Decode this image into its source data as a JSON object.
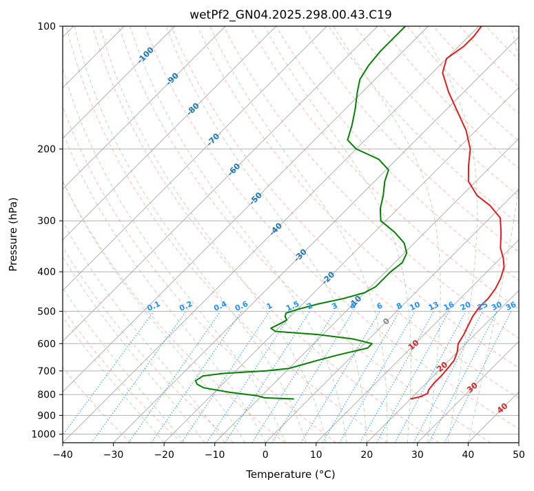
{
  "chart_data": {
    "type": "line",
    "title": "wetPf2_GN04.2025.298.00.43.C19",
    "xlabel": "Temperature (°C)",
    "ylabel": "Pressure (hPa)",
    "xlim": [
      -40,
      50
    ],
    "ylim_hpa": [
      1050,
      100
    ],
    "y_scale": "log",
    "grid": true,
    "x_ticks": [
      -40,
      -30,
      -20,
      -10,
      0,
      10,
      20,
      30,
      40,
      50
    ],
    "x_tick_labels": [
      "−40",
      "−30",
      "−20",
      "−10",
      "0",
      "10",
      "20",
      "30",
      "40",
      "50"
    ],
    "y_ticks": [
      100,
      200,
      300,
      400,
      500,
      600,
      700,
      800,
      900,
      1000
    ],
    "y_tick_labels": [
      "100",
      "200",
      "300",
      "400",
      "500",
      "600",
      "700",
      "800",
      "900",
      "1000"
    ],
    "skew_degrees": 45,
    "colors": {
      "temperature": "#e31a1c",
      "dewpoint": "#008000",
      "isotherm_label": "#1f77b4",
      "mixing_ratio_label": "#1e90ff",
      "dry_adiabat": "#fa8072",
      "moist_adiabat": "#90c890",
      "mixing_ratio_line": "#1e90ff",
      "isotherm": "#aaaaaa",
      "dry_adiabat_label": "#d62728"
    },
    "series": [
      {
        "name": "",
        "role": "temperature",
        "points": [
          {
            "p": 820,
            "t": 20.0
          },
          {
            "p": 810,
            "t": 21.5
          },
          {
            "p": 795,
            "t": 22.3
          },
          {
            "p": 780,
            "t": 21.8
          },
          {
            "p": 750,
            "t": 21.5
          },
          {
            "p": 720,
            "t": 21.5
          },
          {
            "p": 690,
            "t": 21.3
          },
          {
            "p": 660,
            "t": 21.0
          },
          {
            "p": 630,
            "t": 20.0
          },
          {
            "p": 600,
            "t": 18.5
          },
          {
            "p": 570,
            "t": 17.8
          },
          {
            "p": 545,
            "t": 17.0
          },
          {
            "p": 515,
            "t": 16.0
          },
          {
            "p": 490,
            "t": 15.5
          },
          {
            "p": 465,
            "t": 15.5
          },
          {
            "p": 440,
            "t": 15.0
          },
          {
            "p": 415,
            "t": 14.0
          },
          {
            "p": 390,
            "t": 12.5
          },
          {
            "p": 370,
            "t": 10.5
          },
          {
            "p": 350,
            "t": 8.0
          },
          {
            "p": 320,
            "t": 5.0
          },
          {
            "p": 295,
            "t": 2.0
          },
          {
            "p": 275,
            "t": -2.5
          },
          {
            "p": 260,
            "t": -7.0
          },
          {
            "p": 240,
            "t": -11.5
          },
          {
            "p": 220,
            "t": -14.5
          },
          {
            "p": 200,
            "t": -17.5
          },
          {
            "p": 180,
            "t": -22.0
          },
          {
            "p": 160,
            "t": -28.0
          },
          {
            "p": 145,
            "t": -33.0
          },
          {
            "p": 130,
            "t": -38.0
          },
          {
            "p": 120,
            "t": -40.0
          },
          {
            "p": 112,
            "t": -39.0
          },
          {
            "p": 106,
            "t": -39.0
          },
          {
            "p": 100,
            "t": -39.5
          }
        ]
      },
      {
        "name": "",
        "role": "dewpoint",
        "points": [
          {
            "p": 820,
            "t": -3.0
          },
          {
            "p": 815,
            "t": -9.0
          },
          {
            "p": 805,
            "t": -11.0
          },
          {
            "p": 790,
            "t": -17.0
          },
          {
            "p": 770,
            "t": -23.0
          },
          {
            "p": 755,
            "t": -25.0
          },
          {
            "p": 740,
            "t": -26.0
          },
          {
            "p": 720,
            "t": -25.5
          },
          {
            "p": 710,
            "t": -22.0
          },
          {
            "p": 700,
            "t": -14.0
          },
          {
            "p": 690,
            "t": -10.0
          },
          {
            "p": 675,
            "t": -8.0
          },
          {
            "p": 660,
            "t": -6.0
          },
          {
            "p": 640,
            "t": -3.0
          },
          {
            "p": 615,
            "t": 1.5
          },
          {
            "p": 600,
            "t": 1.5
          },
          {
            "p": 585,
            "t": -3.0
          },
          {
            "p": 570,
            "t": -11.0
          },
          {
            "p": 560,
            "t": -20.0
          },
          {
            "p": 550,
            "t": -21.5
          },
          {
            "p": 535,
            "t": -20.5
          },
          {
            "p": 525,
            "t": -20.0
          },
          {
            "p": 515,
            "t": -21.0
          },
          {
            "p": 505,
            "t": -21.5
          },
          {
            "p": 495,
            "t": -20.0
          },
          {
            "p": 480,
            "t": -17.0
          },
          {
            "p": 465,
            "t": -13.0
          },
          {
            "p": 450,
            "t": -10.0
          },
          {
            "p": 435,
            "t": -9.0
          },
          {
            "p": 420,
            "t": -9.0
          },
          {
            "p": 400,
            "t": -9.0
          },
          {
            "p": 380,
            "t": -8.5
          },
          {
            "p": 360,
            "t": -9.5
          },
          {
            "p": 340,
            "t": -12.0
          },
          {
            "p": 320,
            "t": -16.0
          },
          {
            "p": 300,
            "t": -21.0
          },
          {
            "p": 280,
            "t": -23.5
          },
          {
            "p": 260,
            "t": -25.5
          },
          {
            "p": 240,
            "t": -28.0
          },
          {
            "p": 225,
            "t": -29.5
          },
          {
            "p": 212,
            "t": -33.5
          },
          {
            "p": 200,
            "t": -40.0
          },
          {
            "p": 190,
            "t": -43.5
          },
          {
            "p": 175,
            "t": -45.5
          },
          {
            "p": 160,
            "t": -48.0
          },
          {
            "p": 145,
            "t": -51.0
          },
          {
            "p": 135,
            "t": -53.0
          },
          {
            "p": 125,
            "t": -54.0
          },
          {
            "p": 115,
            "t": -54.5
          },
          {
            "p": 100,
            "t": -54.5
          }
        ]
      }
    ],
    "isotherm_labels": [
      {
        "temp": -100,
        "text": "-100",
        "p": 118
      },
      {
        "temp": -90,
        "text": "-90",
        "p": 135
      },
      {
        "temp": -80,
        "text": "-80",
        "p": 160
      },
      {
        "temp": -70,
        "text": "-70",
        "p": 190
      },
      {
        "temp": -60,
        "text": "-60",
        "p": 225
      },
      {
        "temp": -50,
        "text": "-50",
        "p": 265
      },
      {
        "temp": -40,
        "text": "-40",
        "p": 315
      },
      {
        "temp": -30,
        "text": "-30",
        "p": 365
      },
      {
        "temp": -20,
        "text": "-20",
        "p": 415
      },
      {
        "temp": -10,
        "text": "-10",
        "p": 475
      }
    ],
    "isotherm_zero_label": {
      "temp": 0,
      "text": "0",
      "p": 530
    },
    "mixing_ratio_labels": [
      "0.1",
      "0.2",
      "0.4",
      "0.6",
      "1",
      "1.5",
      "2",
      "3",
      "4",
      "6",
      "8",
      "10",
      "13",
      "16",
      "20",
      "25",
      "30",
      "36"
    ],
    "mixing_ratio_values": [
      0.1,
      0.2,
      0.4,
      0.6,
      1,
      1.5,
      2,
      3,
      4,
      6,
      8,
      10,
      13,
      16,
      20,
      25,
      30,
      36
    ],
    "mixing_ratio_label_p": 500,
    "dry_adiabat_labels": [
      {
        "text": "10",
        "temp": 10,
        "p": 605
      },
      {
        "text": "20",
        "temp": 20,
        "p": 685
      },
      {
        "text": "30",
        "temp": 30,
        "p": 770
      },
      {
        "text": "40",
        "temp": 40,
        "p": 865
      }
    ]
  }
}
